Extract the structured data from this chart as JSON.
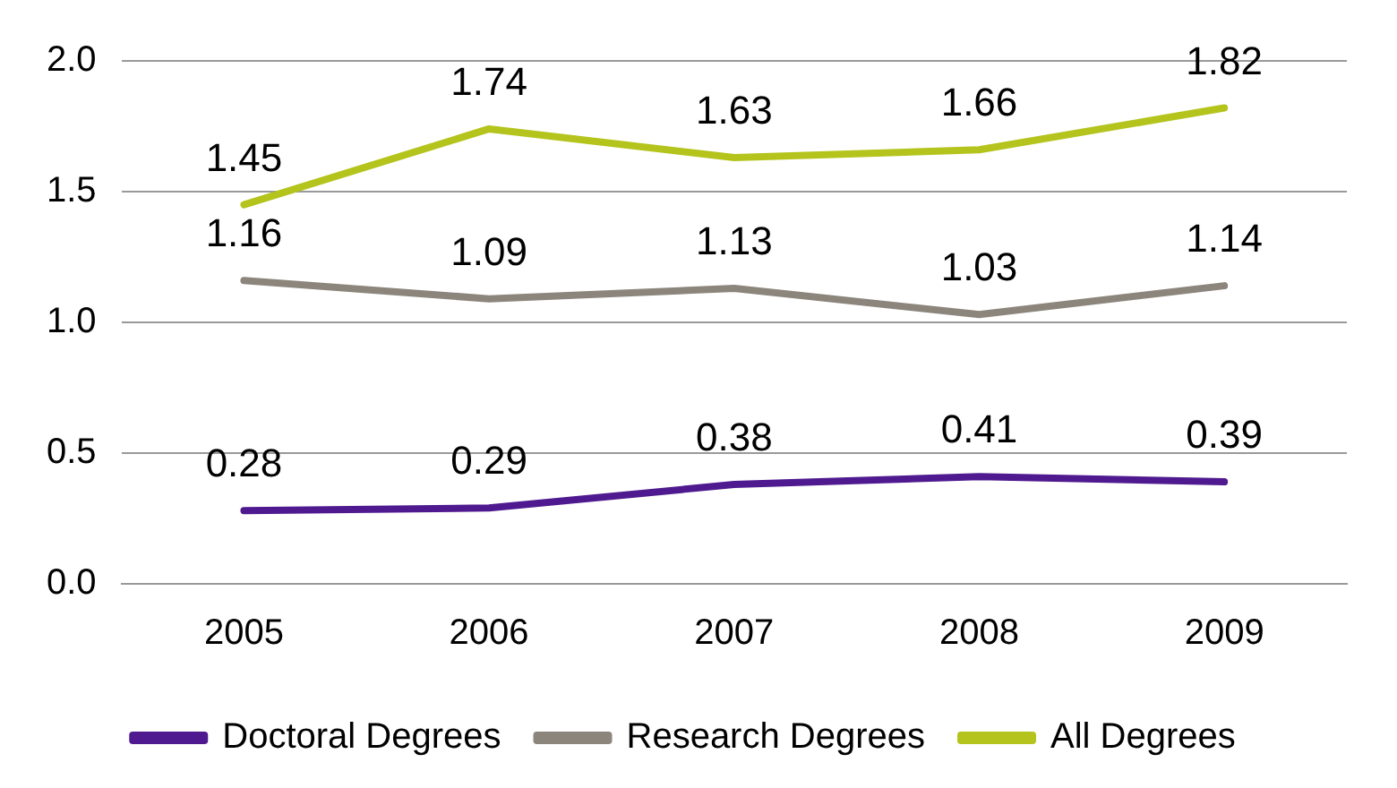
{
  "chart_data": {
    "type": "line",
    "categories": [
      "2005",
      "2006",
      "2007",
      "2008",
      "2009"
    ],
    "series": [
      {
        "name": "Doctoral Degrees",
        "color": "#4f1a8f",
        "values": [
          0.28,
          0.29,
          0.38,
          0.41,
          0.39
        ]
      },
      {
        "name": "Research Degrees",
        "color": "#8c857c",
        "values": [
          1.16,
          1.09,
          1.13,
          1.03,
          1.14
        ]
      },
      {
        "name": "All Degrees",
        "color": "#b4c41c",
        "values": [
          1.45,
          1.74,
          1.63,
          1.66,
          1.82
        ]
      }
    ],
    "ylim": [
      0,
      2
    ],
    "yticks": [
      {
        "value": 0,
        "label": "0.0"
      },
      0.5,
      {
        "value": 1,
        "label": "1.0"
      },
      1.5,
      {
        "value": 2,
        "label": "2.0"
      }
    ],
    "grid": "y",
    "legend": "bottom",
    "marker": "none",
    "line_style": "solid",
    "data_labels": true
  }
}
